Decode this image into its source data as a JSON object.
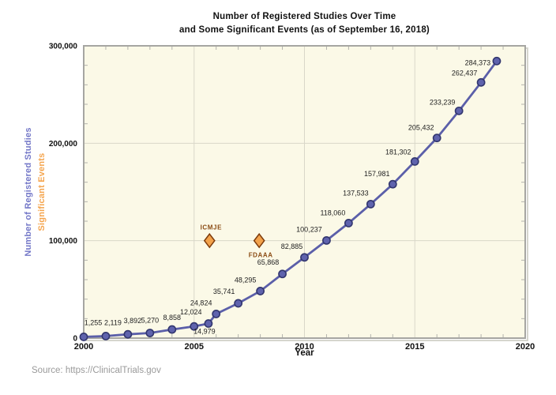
{
  "chart": {
    "title_line1": "Number of Registered Studies Over Time",
    "title_line2": "and Some Significant Events (as of September 16, 2018)",
    "source": "Source: https://ClinicalTrials.gov"
  },
  "chart_data": {
    "type": "line",
    "title": "Number of Registered Studies Over Time and Some Significant Events (as of September 16, 2018)",
    "xlabel": "Year",
    "ylabel_primary": "Number of Registered Studies",
    "ylabel_secondary": "Significant Events",
    "xlim": [
      2000,
      2020
    ],
    "ylim": [
      0,
      300000
    ],
    "grid": "major",
    "legend_position": "none",
    "x_minor_step": 1,
    "y_minor_step": 20000,
    "x_ticks": [
      {
        "value": 2000,
        "label": "2000"
      },
      {
        "value": 2005,
        "label": "2005"
      },
      {
        "value": 2010,
        "label": "2010"
      },
      {
        "value": 2015,
        "label": "2015"
      },
      {
        "value": 2020,
        "label": "2020"
      }
    ],
    "y_ticks": [
      {
        "value": 0,
        "label": "0"
      },
      {
        "value": 100000,
        "label": "100,000"
      },
      {
        "value": 200000,
        "label": "200,000"
      },
      {
        "value": 300000,
        "label": "300,000"
      }
    ],
    "series": [
      {
        "name": "Registered Studies",
        "points": [
          {
            "x": 2000,
            "y": 1255,
            "label": "1,255",
            "dx": 12,
            "dy": -18
          },
          {
            "x": 2001,
            "y": 2119,
            "label": "2,119",
            "dx": 9,
            "dy": -17
          },
          {
            "x": 2002,
            "y": 3892,
            "label": "3,892",
            "dx": 6,
            "dy": -17
          },
          {
            "x": 2003,
            "y": 5270,
            "label": "5,270",
            "dx": 0,
            "dy": -16
          },
          {
            "x": 2004,
            "y": 8858,
            "label": "8,858",
            "dx": 0,
            "dy": -15
          },
          {
            "x": 2005,
            "y": 12024,
            "label": "12,024",
            "dx": -4,
            "dy": -18
          },
          {
            "x": 2005.65,
            "y": 14979,
            "label": "14,979",
            "dx": -5,
            "dy": 10
          },
          {
            "x": 2006,
            "y": 24824,
            "label": "24,824",
            "dx": -19,
            "dy": -14
          },
          {
            "x": 2007,
            "y": 35741,
            "label": "35,741",
            "dx": -18,
            "dy": -15
          },
          {
            "x": 2008,
            "y": 48295,
            "label": "48,295",
            "dx": -19,
            "dy": -14
          },
          {
            "x": 2009,
            "y": 65868,
            "label": "65,868",
            "dx": -18,
            "dy": -15
          },
          {
            "x": 2010,
            "y": 82885,
            "label": "82,885",
            "dx": -16,
            "dy": -14
          },
          {
            "x": 2011,
            "y": 100237,
            "label": "100,237",
            "dx": -22,
            "dy": -14
          },
          {
            "x": 2012,
            "y": 118060,
            "label": "118,060",
            "dx": -20,
            "dy": -13
          },
          {
            "x": 2013,
            "y": 137533,
            "label": "137,533",
            "dx": -19,
            "dy": -14
          },
          {
            "x": 2014,
            "y": 157981,
            "label": "157,981",
            "dx": -20,
            "dy": -13
          },
          {
            "x": 2015,
            "y": 181302,
            "label": "181,302",
            "dx": -21,
            "dy": -12
          },
          {
            "x": 2016,
            "y": 205432,
            "label": "205,432",
            "dx": -20,
            "dy": -13
          },
          {
            "x": 2017,
            "y": 233239,
            "label": "233,239",
            "dx": -21,
            "dy": -11
          },
          {
            "x": 2018,
            "y": 262437,
            "label": "262,437",
            "dx": -21,
            "dy": -12
          },
          {
            "x": 2018.71,
            "y": 284373,
            "label": "284,373",
            "dx": -24,
            "dy": 2
          }
        ]
      }
    ],
    "events": [
      {
        "name": "ICMJE",
        "x": 2005.7,
        "y": 100000,
        "label_dy": -14
      },
      {
        "name": "FDAAA",
        "x": 2007.95,
        "y": 100000,
        "label_dy": 21
      }
    ],
    "colors": {
      "line": "#5b5fa9",
      "marker_fill": "#5f63ad",
      "marker_edge": "#32366e",
      "event_fill": "#f2a24c",
      "event_edge": "#7c3a0a",
      "event_label": "#8a4a12",
      "plot_bg": "#fbf9e7",
      "grid": "#d9d7c9",
      "frame": "#a6a6a2",
      "frame_shadow": "#d6d6ce",
      "minor_tick": "#b3b3ad",
      "axis_label_primary": "#7478c8",
      "axis_label_secondary": "#f5a54e",
      "point_label": "#222222",
      "tick_label": "#111111",
      "source_text": "#9a9a9a"
    }
  }
}
